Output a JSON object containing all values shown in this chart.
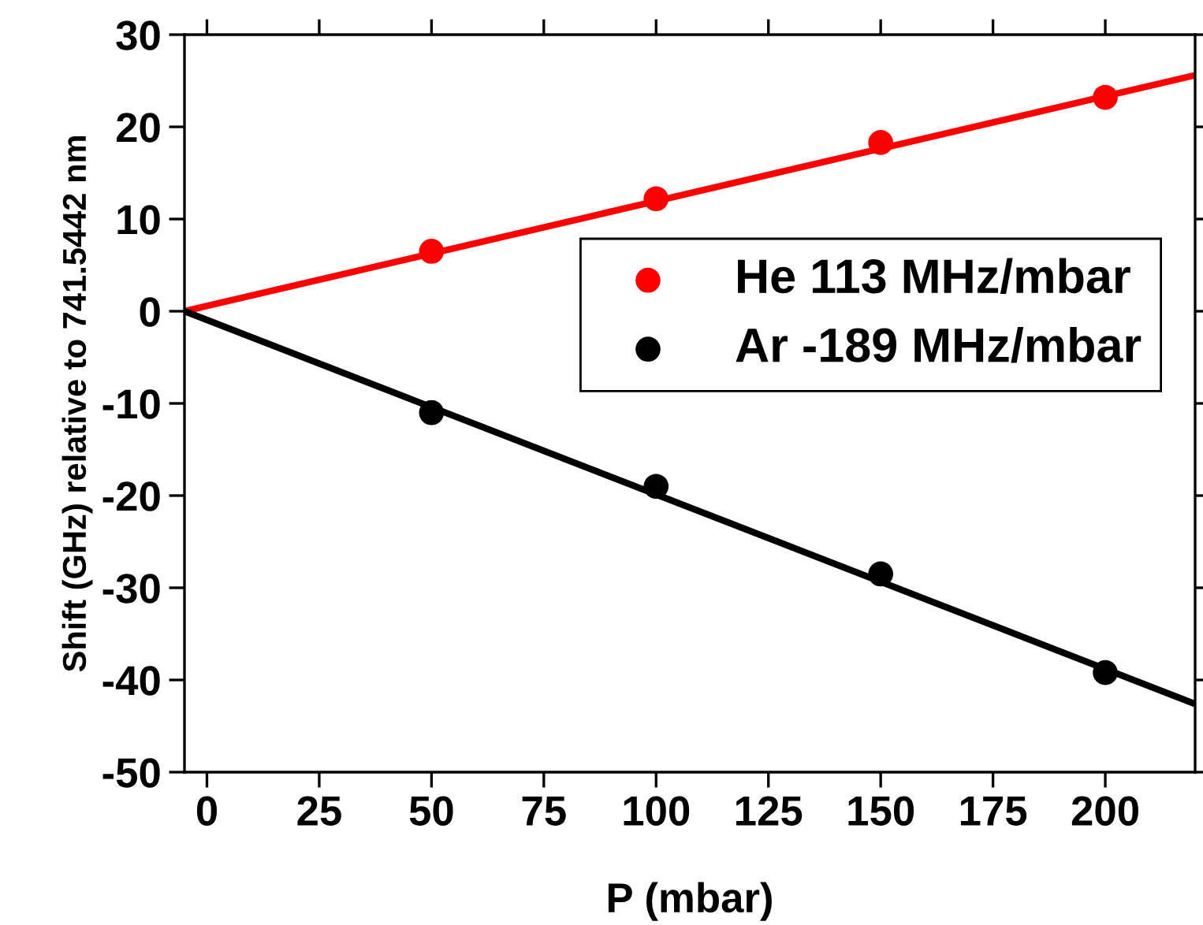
{
  "chart_data": {
    "type": "scatter",
    "xlabel": "P (mbar)",
    "ylabel": "Shift (GHz) relative to 741.5442 nm",
    "xlim": [
      -5,
      220
    ],
    "xticks": [
      0,
      25,
      50,
      75,
      100,
      125,
      150,
      175,
      200
    ],
    "ylim": [
      -50,
      30
    ],
    "yticks": [
      -50,
      -40,
      -30,
      -20,
      -10,
      0,
      10,
      20,
      30
    ],
    "grid": false,
    "legend": "right",
    "marker": "circle",
    "series": [
      {
        "name": "He 113 MHz/mbar",
        "color": "#ff0000",
        "x": [
          50,
          100,
          150,
          200
        ],
        "values": [
          6.5,
          12.2,
          18.3,
          23.2
        ]
      },
      {
        "name": "Ar -189 MHz/mbar",
        "color": "#000000",
        "x": [
          50,
          100,
          150,
          200
        ],
        "values": [
          -11,
          -19,
          -28.5,
          -39.2
        ]
      },
      {
        "type": "line",
        "color": "#ff0000",
        "x": [
          -5,
          220
        ],
        "values": [
          0,
          25.6
        ],
        "line_style": "solid",
        "marker": "none"
      },
      {
        "type": "line",
        "color": "#000000",
        "x": [
          -5,
          220
        ],
        "values": [
          0,
          -42.6
        ],
        "line_style": "solid",
        "marker": "none"
      }
    ]
  }
}
